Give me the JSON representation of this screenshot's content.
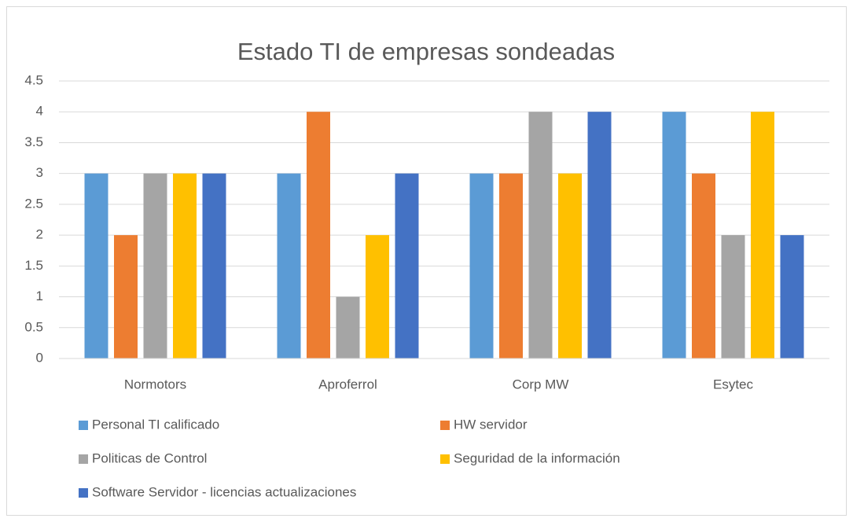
{
  "chart_data": {
    "type": "bar",
    "title": "Estado TI de empresas sondeadas",
    "categories": [
      "Normotors",
      "Aproferrol",
      "Corp MW",
      "Esytec"
    ],
    "series": [
      {
        "name": "Personal TI calificado",
        "color": "#5b9bd5",
        "values": [
          3,
          3,
          3,
          4
        ]
      },
      {
        "name": "HW servidor",
        "color": "#ed7d31",
        "values": [
          2,
          4,
          3,
          3
        ]
      },
      {
        "name": "Politicas de Control",
        "color": "#a5a5a5",
        "values": [
          3,
          1,
          4,
          2
        ]
      },
      {
        "name": "Seguridad de la información",
        "color": "#ffc000",
        "values": [
          3,
          2,
          3,
          4
        ]
      },
      {
        "name": "Software Servidor - licencias actualizaciones",
        "color": "#4472c4",
        "values": [
          3,
          3,
          4,
          2
        ]
      }
    ],
    "ylim": [
      0,
      4.5
    ],
    "yticks": [
      0,
      0.5,
      1,
      1.5,
      2,
      2.5,
      3,
      3.5,
      4,
      4.5
    ],
    "grid": true,
    "legend": "bottom"
  }
}
